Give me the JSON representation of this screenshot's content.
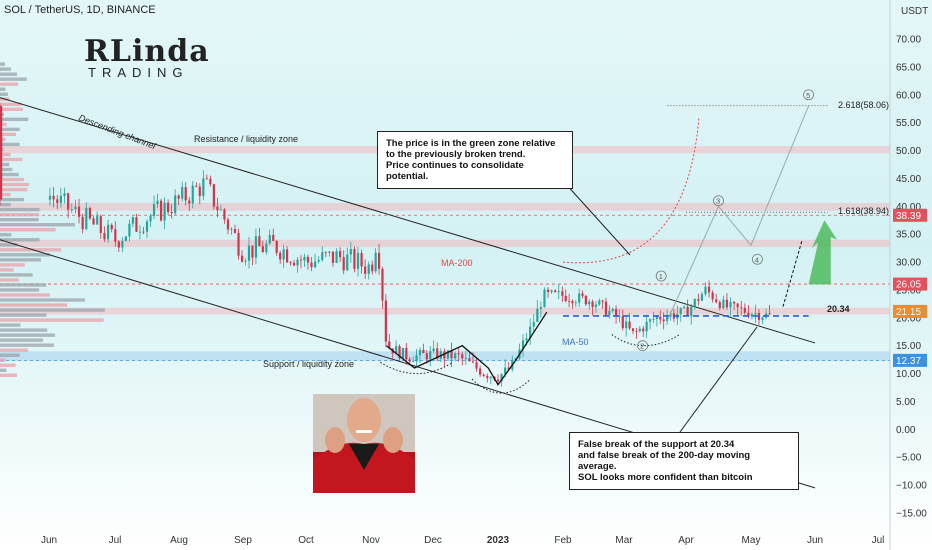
{
  "header": {
    "title": "SOL / TetherUS, 1D, BINANCE"
  },
  "logo": {
    "main": "RLinda",
    "sub": "TRADING"
  },
  "icons": {
    "mascot": "picard-fist-pump-icon"
  },
  "colors": {
    "up": "#26a69a",
    "down": "#d0354b",
    "ma200": "#e04848",
    "ma50": "#3d72d8",
    "resistance_zone": "#f2b8c0",
    "support_zone": "#a7d4ec",
    "bullish_arrow": "#4cbb5c",
    "tag_red": "#e5505c",
    "tag_orange": "#f08a2a",
    "tag_blue": "#3d8fe0"
  },
  "annotations": {
    "note_top": [
      "The price is in the green zone relative",
      "to the previously broken trend.",
      "Price continues to consolidate potential."
    ],
    "note_bottom": [
      "False break of the support at 20.34",
      "and false break of the 200-day moving average.",
      "SOL looks more confident than bitcoin"
    ],
    "descending_channel": "Descending channel",
    "resistance_zone": "Resistance / liquidity zone",
    "support_zone": "Support / liquidity zone",
    "ma200": "MA-200",
    "ma50": "MA-50",
    "level_2034": "20.34",
    "fib_2618": "2.618(58.06)",
    "fib_1618": "1.618(38.94)",
    "waves": [
      "1",
      "2",
      "3",
      "4",
      "5"
    ]
  },
  "chart_data": {
    "type": "candlestick",
    "symbol": "SOL / TetherUS",
    "timeframe": "1D",
    "exchange": "BINANCE",
    "currency_label": "USDT",
    "ylim": [
      -15,
      72
    ],
    "y_ticks": [
      70,
      65,
      60,
      55,
      50,
      45,
      40,
      35,
      30,
      25,
      20,
      15,
      10,
      5,
      0,
      -5,
      -10,
      -15
    ],
    "y_tick_labels": [
      "70.00",
      "65.00",
      "60.00",
      "55.00",
      "50.00",
      "45.00",
      "40.00",
      "35.00",
      "30.00",
      "25.00",
      "20.00",
      "15.00",
      "10.00",
      "5.00",
      "0.00",
      "−5.00",
      "−10.00",
      "−15.00"
    ],
    "x_labels": [
      "Jun",
      "Jul",
      "Aug",
      "Sep",
      "Oct",
      "Nov",
      "Dec",
      "2023",
      "Feb",
      "Mar",
      "Apr",
      "May",
      "Jun",
      "Jul"
    ],
    "price_tags": [
      {
        "value": 38.39,
        "label": "38.39",
        "color": "#e5505c"
      },
      {
        "value": 26.05,
        "label": "26.05",
        "color": "#e5505c"
      },
      {
        "value": 21.15,
        "label": "21.15",
        "color": "#f08a2a"
      },
      {
        "value": 12.37,
        "label": "12.37",
        "color": "#3d8fe0"
      }
    ],
    "resistance_zones": [
      [
        49.5,
        50.8
      ],
      [
        39.2,
        40.6
      ],
      [
        32.7,
        34.0
      ],
      [
        20.6,
        21.8
      ]
    ],
    "support_zone": [
      12.3,
      14.0
    ],
    "key_levels": {
      "support": 20.34,
      "resistance_1": 26.05,
      "fib_1618": 38.94,
      "fib_2618": 58.06
    },
    "approx_close_path": [
      {
        "date": "Jun",
        "close": 42
      },
      {
        "date": "Jul",
        "close": 34
      },
      {
        "date": "Aug",
        "close": 41
      },
      {
        "date": "Sep",
        "close": 32
      },
      {
        "date": "Oct",
        "close": 30
      },
      {
        "date": "Nov",
        "close": 31
      },
      {
        "date": "Nov-10",
        "close": 15
      },
      {
        "date": "Dec",
        "close": 13
      },
      {
        "date": "Dec-29",
        "close": 9.5
      },
      {
        "date": "2023",
        "close": 11
      },
      {
        "date": "Jan-20",
        "close": 24
      },
      {
        "date": "Feb",
        "close": 24
      },
      {
        "date": "Mar-10",
        "close": 17
      },
      {
        "date": "Apr",
        "close": 21
      },
      {
        "date": "Apr-15",
        "close": 25
      },
      {
        "date": "May",
        "close": 21
      },
      {
        "date": "May-12",
        "close": 20.5
      }
    ]
  }
}
